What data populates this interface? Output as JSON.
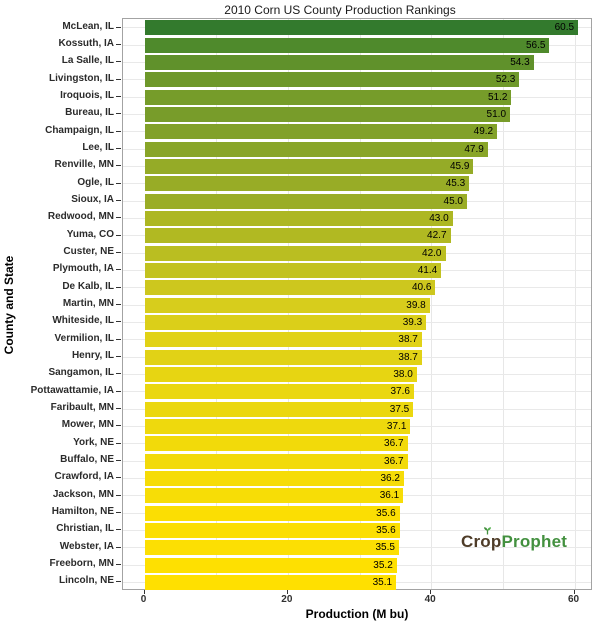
{
  "title": "2010 Corn US County Production Rankings",
  "x_axis": {
    "label": "Production (M bu)",
    "ticks": [
      0,
      20,
      40,
      60
    ],
    "gridline_units": [
      10,
      20,
      30,
      40,
      50,
      60
    ]
  },
  "y_axis": {
    "label": "County and State"
  },
  "logo": {
    "part1": "Crop",
    "part2": "Prophet",
    "part1_color": "#4e3c28",
    "part2_color": "#43903f",
    "sprout_color": "#43903f"
  },
  "colors": {
    "panel_border": "#a3a3a3",
    "gridline": "#e8e8e8",
    "axis_text": "#303030",
    "bar_value_text": "#000000",
    "gradient_low": "#ffe000",
    "gradient_high": "#337a2d"
  },
  "chart_data": {
    "type": "bar",
    "orientation": "horizontal",
    "title": "2010 Corn US County Production Rankings",
    "xlabel": "Production (M bu)",
    "ylabel": "County and State",
    "xlim": [
      0,
      63
    ],
    "grid": true,
    "categories": [
      "McLean, IL",
      "Kossuth, IA",
      "La Salle, IL",
      "Livingston, IL",
      "Iroquois, IL",
      "Bureau, IL",
      "Champaign, IL",
      "Lee, IL",
      "Renville, MN",
      "Ogle, IL",
      "Sioux, IA",
      "Redwood, MN",
      "Yuma, CO",
      "Custer, NE",
      "Plymouth, IA",
      "De Kalb, IL",
      "Martin, MN",
      "Whiteside, IL",
      "Vermilion, IL",
      "Henry, IL",
      "Sangamon, IL",
      "Pottawattamie, IA",
      "Faribault, MN",
      "Mower, MN",
      "York, NE",
      "Buffalo, NE",
      "Crawford, IA",
      "Jackson, MN",
      "Hamilton, NE",
      "Christian, IL",
      "Webster, IA",
      "Freeborn, MN",
      "Lincoln, NE"
    ],
    "values": [
      60.5,
      56.5,
      54.3,
      52.3,
      51.2,
      51.0,
      49.2,
      47.9,
      45.9,
      45.3,
      45.0,
      43.0,
      42.7,
      42.0,
      41.4,
      40.6,
      39.8,
      39.3,
      38.7,
      38.7,
      38.0,
      37.6,
      37.5,
      37.1,
      36.7,
      36.7,
      36.2,
      36.1,
      35.6,
      35.6,
      35.5,
      35.2,
      35.1
    ],
    "color_scale": {
      "low_value": 35.1,
      "high_value": 60.5,
      "stops": [
        [
          0.0,
          "#ffe000"
        ],
        [
          0.08,
          "#eed90d"
        ],
        [
          0.19,
          "#d6cc1d"
        ],
        [
          0.31,
          "#adb723"
        ],
        [
          0.39,
          "#9aad26"
        ],
        [
          0.63,
          "#779c2a"
        ],
        [
          0.76,
          "#5f912b"
        ],
        [
          0.84,
          "#4f8a2c"
        ],
        [
          1.0,
          "#337a2d"
        ]
      ]
    }
  }
}
